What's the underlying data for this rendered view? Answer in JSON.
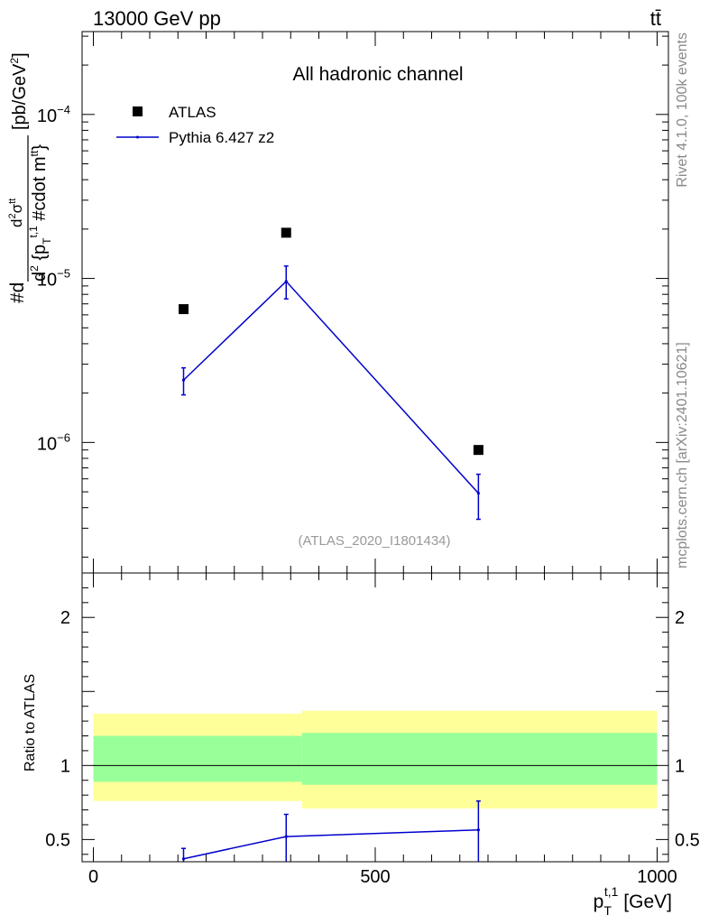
{
  "header": {
    "left": "13000 GeV pp",
    "right": "tt̄"
  },
  "side_labels": {
    "rivet": "Rivet 4.1.0,  100k events",
    "mcplots": "mcplots.cern.ch [arXiv:2401.10621]"
  },
  "chart_data": [
    {
      "type": "scatter",
      "panel": "main",
      "title": "All hadronic channel",
      "analysis_id": "(ATLAS_2020_I1801434)",
      "ylabel": "#d d²σᵗᵗ / d² {pT t,1 #cdot mtt} [pb/GeV²]",
      "yscale": "log",
      "ylim": [
        1.6e-07,
        0.00032
      ],
      "xlim": [
        -20,
        1020
      ],
      "y_ticks": [
        {
          "value": 0.0001,
          "base": "10",
          "exp": "−4"
        },
        {
          "value": 1e-05,
          "base": "10",
          "exp": "−5"
        },
        {
          "value": 1e-06,
          "base": "10",
          "exp": "−6"
        }
      ],
      "legend_position": "top-left",
      "series": [
        {
          "name": "ATLAS",
          "marker": "square",
          "color": "#000000",
          "x": [
            160,
            342,
            683
          ],
          "y": [
            6.5e-06,
            1.9e-05,
            9e-07
          ]
        },
        {
          "name": "Pythia 6.427 z2",
          "marker": "line",
          "color": "#0000cc",
          "x": [
            160,
            342,
            683
          ],
          "y": [
            2.4e-06,
            9.6e-06,
            4.9e-07
          ],
          "yerr_low": [
            1.95e-06,
            7.5e-06,
            3.4e-07
          ],
          "yerr_high": [
            2.85e-06,
            1.19e-05,
            6.4e-07
          ]
        }
      ]
    },
    {
      "type": "line",
      "panel": "ratio",
      "ylabel": "Ratio to ATLAS",
      "xlabel": "pT t,1 [GeV]",
      "xlabel_main": "p",
      "xlabel_sub": "T",
      "xlabel_sup": "t,1",
      "xlabel_unit": " [GeV]",
      "xlim": [
        -20,
        1020
      ],
      "ylim": [
        0.35,
        2.3
      ],
      "x_ticks": [
        {
          "value": 0,
          "label": "0"
        },
        {
          "value": 500,
          "label": "500"
        },
        {
          "value": 1000,
          "label": "1000"
        }
      ],
      "y_ticks": [
        {
          "value": 0.5,
          "label": "0.5"
        },
        {
          "value": 1,
          "label": "1"
        },
        {
          "value": 2,
          "label": "2"
        }
      ],
      "bands": [
        {
          "x0": 0,
          "x1": 370,
          "yellow": [
            0.76,
            1.35
          ],
          "green": [
            0.89,
            1.2
          ]
        },
        {
          "x0": 370,
          "x1": 1000,
          "yellow": [
            0.71,
            1.37
          ],
          "green": [
            0.87,
            1.22
          ]
        }
      ],
      "band_colors": {
        "yellow": "#ffff99",
        "green": "#99ff99"
      },
      "series": [
        {
          "name": "Pythia 6.427 z2",
          "color": "#0000cc",
          "x": [
            160,
            342,
            683
          ],
          "y": [
            0.37,
            0.52,
            0.565
          ],
          "yerr_low": [
            0.3,
            0.35,
            0.35
          ],
          "yerr_high": [
            0.44,
            0.67,
            0.76
          ]
        }
      ]
    }
  ]
}
